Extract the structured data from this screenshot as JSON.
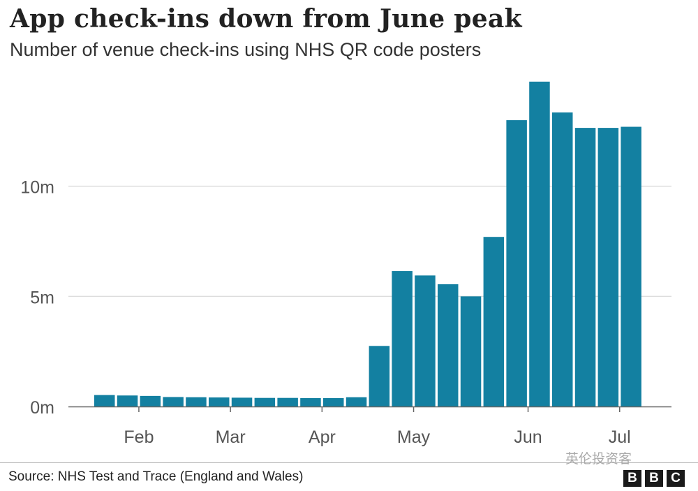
{
  "title": "App check-ins down from June peak",
  "subtitle": "Number of venue check-ins using NHS QR code posters",
  "source": "Source: NHS Test and Trace (England and Wales)",
  "watermark": "英伦投资客",
  "logo": {
    "letters": [
      "B",
      "B",
      "C"
    ]
  },
  "colors": {
    "bar": "#1380A1",
    "grid": "#dddddd",
    "axis": "#666666"
  },
  "chart_data": {
    "type": "bar",
    "title": "App check-ins down from June peak",
    "subtitle": "Number of venue check-ins using NHS QR code posters",
    "xlabel": "",
    "ylabel": "",
    "ylim": [
      0,
      15000000
    ],
    "yticks": [
      {
        "value": 0,
        "label": "0m"
      },
      {
        "value": 5000000,
        "label": "5m"
      },
      {
        "value": 10000000,
        "label": "10m"
      }
    ],
    "xticks": [
      {
        "after_bar": 2,
        "label": "Feb"
      },
      {
        "after_bar": 6,
        "label": "Mar"
      },
      {
        "after_bar": 10,
        "label": "Apr"
      },
      {
        "after_bar": 14,
        "label": "May"
      },
      {
        "after_bar": 19,
        "label": "Jun"
      },
      {
        "after_bar": 23,
        "label": "Jul"
      }
    ],
    "grid": true,
    "values": [
      520000,
      500000,
      480000,
      430000,
      420000,
      410000,
      400000,
      390000,
      390000,
      380000,
      380000,
      420000,
      2750000,
      6150000,
      5950000,
      5550000,
      5000000,
      7700000,
      13000000,
      14750000,
      13350000,
      12650000,
      12650000,
      12700000
    ]
  }
}
